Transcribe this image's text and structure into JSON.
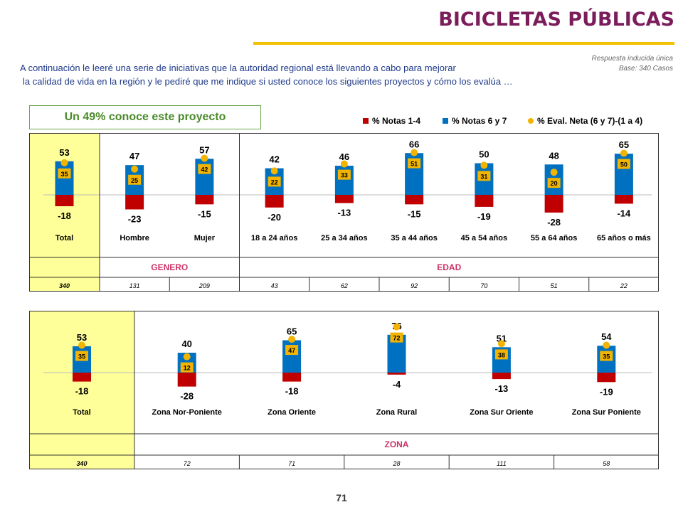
{
  "header": {
    "title": "BICICLETAS PÚBLICAS",
    "note_line1": "Respuesta inducida única",
    "note_line2": "Base: 340 Casos"
  },
  "intro": {
    "line1": "A continuación le leeré una serie de iniciativas que la autoridad regional está llevando a cabo para mejorar",
    "line2": "la calidad de vida en la región y le pediré que me indique si usted conoce los siguientes proyectos y cómo los evalúa …"
  },
  "callout": "Un 49% conoce este proyecto",
  "legend": {
    "neg": "% Notas 1-4",
    "pos": "% Notas 6 y 7",
    "net": "% Eval. Neta (6 y 7)-(1 a 4)"
  },
  "colors": {
    "neg": "#c00000",
    "pos": "#0070c0",
    "net": "#f2b400",
    "highlight": "#ffff99",
    "group_label": "#cc3366",
    "title": "#7b1d5a"
  },
  "page_number": "71",
  "chart_data": [
    {
      "type": "bar",
      "series": [
        {
          "name": "% Notas 1-4",
          "values": [
            -18,
            -23,
            -15,
            -20,
            -13,
            -15,
            -19,
            -28,
            -14
          ]
        },
        {
          "name": "% Notas 6 y 7",
          "values": [
            53,
            47,
            57,
            42,
            46,
            66,
            50,
            48,
            65
          ]
        },
        {
          "name": "% Eval. Neta (6 y 7)-(1 a 4)",
          "values": [
            35,
            25,
            42,
            22,
            33,
            51,
            31,
            20,
            50
          ]
        }
      ],
      "categories": [
        "Total",
        "Hombre",
        "Mujer",
        "18 a 24 años",
        "25 a 34 años",
        "35 a 44 años",
        "45 a 54 años",
        "55 a 64 años",
        "65 años o más"
      ],
      "groups": [
        {
          "label": "",
          "span": 1
        },
        {
          "label": "GENERO",
          "span": 2
        },
        {
          "label": "EDAD",
          "span": 6
        }
      ],
      "bases": [
        "340",
        "131",
        "209",
        "43",
        "62",
        "92",
        "70",
        "51",
        "22"
      ]
    },
    {
      "type": "bar",
      "series": [
        {
          "name": "% Notas 1-4",
          "values": [
            -18,
            -28,
            -18,
            -4,
            -13,
            -19
          ]
        },
        {
          "name": "% Notas 6 y 7",
          "values": [
            53,
            40,
            65,
            76,
            51,
            54
          ]
        },
        {
          "name": "% Eval. Neta (6 y 7)-(1 a 4)",
          "values": [
            35,
            12,
            47,
            72,
            38,
            35
          ]
        }
      ],
      "categories": [
        "Total",
        "Zona Nor-Poniente",
        "Zona Oriente",
        "Zona Rural",
        "Zona Sur Oriente",
        "Zona Sur Poniente"
      ],
      "groups": [
        {
          "label": "",
          "span": 1
        },
        {
          "label": "ZONA",
          "span": 5
        }
      ],
      "bases": [
        "340",
        "72",
        "71",
        "28",
        "111",
        "58"
      ]
    }
  ]
}
